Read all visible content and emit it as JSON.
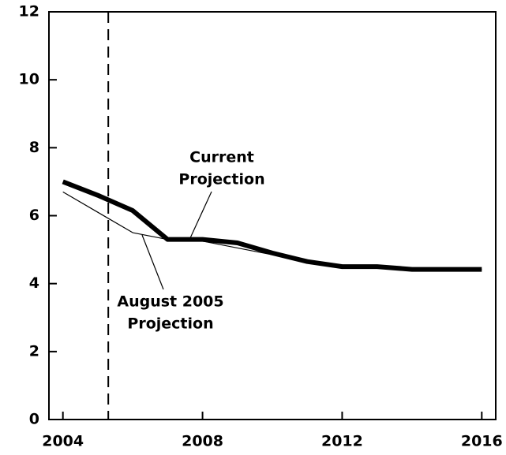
{
  "chart_data": {
    "type": "line",
    "x": [
      2004,
      2005,
      2006,
      2007,
      2008,
      2009,
      2010,
      2011,
      2012,
      2013,
      2014,
      2015,
      2016
    ],
    "series": [
      {
        "name": "Current Projection",
        "color": "#000000",
        "values": [
          7.0,
          6.6,
          6.15,
          5.3,
          5.3,
          5.2,
          4.9,
          4.65,
          4.5,
          4.5,
          4.42,
          4.42,
          4.42
        ]
      },
      {
        "name": "August 2005 Projection",
        "color": "#000000",
        "values": [
          6.7,
          6.1,
          5.5,
          5.3,
          5.25,
          5.05,
          4.85,
          4.65,
          4.5,
          4.5,
          4.42,
          4.42,
          4.42
        ]
      }
    ],
    "annotations": [
      {
        "lines": [
          "Current",
          "Projection"
        ],
        "series": 0
      },
      {
        "lines": [
          "August 2005",
          "Projection"
        ],
        "series": 1
      }
    ],
    "vline_x": 2005.3,
    "xlim": [
      2003.6,
      2016.4
    ],
    "xticks": [
      2004,
      2008,
      2012,
      2016
    ],
    "ylim": [
      0,
      12
    ],
    "yticks": [
      0,
      2,
      4,
      6,
      8,
      10,
      12
    ]
  }
}
